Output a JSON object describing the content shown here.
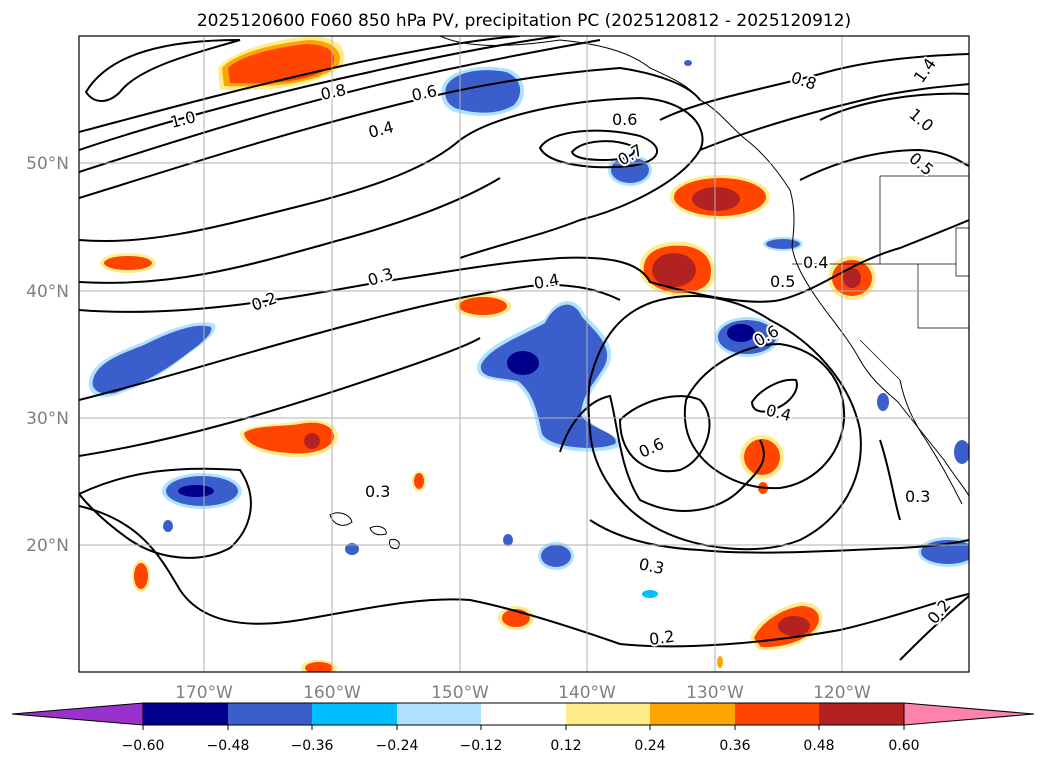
{
  "title": "2025120600 F060 850 hPa PV, precipitation PC (2025120812 - 2025120912)",
  "map": {
    "lat_range": [
      10,
      60
    ],
    "lon_range": [
      -180,
      -110
    ],
    "lat_ticks": [
      {
        "value": 50,
        "label": "50°N"
      },
      {
        "value": 40,
        "label": "40°N"
      },
      {
        "value": 30,
        "label": "30°N"
      },
      {
        "value": 20,
        "label": "20°N"
      }
    ],
    "lon_ticks": [
      {
        "value": -170,
        "label": "170°W"
      },
      {
        "value": -160,
        "label": "160°W"
      },
      {
        "value": -150,
        "label": "150°W"
      },
      {
        "value": -140,
        "label": "140°W"
      },
      {
        "value": -130,
        "label": "130°W"
      },
      {
        "value": -120,
        "label": "120°W"
      }
    ],
    "contour_labels": [
      "1.0",
      "0.8",
      "0.6",
      "0.4",
      "0.6",
      "0.7",
      "0.8",
      "1.0",
      "1.4",
      "0.5",
      "0.2",
      "0.3",
      "0.4",
      "0.5",
      "0.4",
      "0.6",
      "0.4",
      "0.6",
      "0.3",
      "0.3",
      "0.3",
      "0.2",
      "0.2"
    ]
  },
  "colorbar": {
    "ticks": [
      "−0.60",
      "−0.48",
      "−0.36",
      "−0.24",
      "−0.12",
      "0.12",
      "0.24",
      "0.36",
      "0.48",
      "0.60"
    ],
    "colors": [
      "#9932cc",
      "#00008b",
      "#3a5fcd",
      "#00bfff",
      "#b0e2ff",
      "#ffffff",
      "#ffec8b",
      "#ffa500",
      "#ff4500",
      "#b22222",
      "#ff82ab"
    ]
  },
  "colors": {
    "pos_low": "#ffec8b",
    "pos_mid": "#ffa500",
    "pos_high": "#ff4500",
    "pos_max": "#b22222",
    "neg_low": "#b0e2ff",
    "neg_mid": "#00bfff",
    "neg_high": "#3a5fcd",
    "neg_max": "#00008b",
    "grid": "#b0b0b0",
    "contour": "#000000"
  }
}
